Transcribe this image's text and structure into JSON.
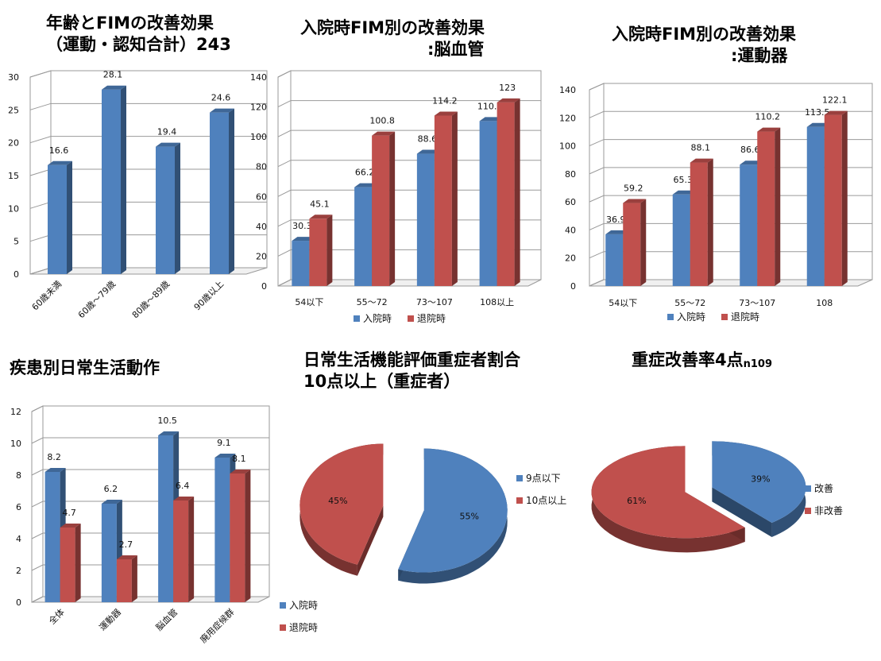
{
  "colors": {
    "blue": "#4f81bd",
    "red": "#c0504d"
  },
  "chart_data": [
    {
      "id": "c1",
      "type": "bar",
      "title_lines": [
        "年齢とFIMの改善効果",
        "（運動・認知合計）243"
      ],
      "categories": [
        "60歳未満",
        "60歳～79歳",
        "80歳～89歳",
        "90歳以上"
      ],
      "series": [
        {
          "values": [
            16.6,
            28.1,
            19.4,
            24.6
          ]
        }
      ],
      "data_labels": [
        "16.6",
        "28.1",
        "19.4",
        "24.6"
      ],
      "yticks": [
        "0",
        "5",
        "10",
        "15",
        "20",
        "25",
        "30"
      ],
      "ylim": [
        0,
        30
      ],
      "grid": true,
      "legend": "none"
    },
    {
      "id": "c2",
      "type": "bar",
      "title_lines": [
        "入院時FIM別の改善効果",
        ":脳血管"
      ],
      "categories": [
        "54以下",
        "55～72",
        "73～107",
        "108以上"
      ],
      "series": [
        {
          "name": "入院時",
          "values": [
            30.3,
            66.2,
            88.6,
            110.5
          ]
        },
        {
          "name": "退院時",
          "values": [
            45.1,
            100.8,
            114.2,
            123
          ]
        }
      ],
      "data_labels": [
        [
          "30.3",
          "66.2",
          "88.6",
          "110.5"
        ],
        [
          "45.1",
          "100.8",
          "114.2",
          "123"
        ]
      ],
      "yticks": [
        "0",
        "20",
        "40",
        "60",
        "80",
        "100",
        "120",
        "140"
      ],
      "ylim": [
        0,
        140
      ],
      "grid": true,
      "legend": "bottom"
    },
    {
      "id": "c3",
      "type": "bar",
      "title_lines": [
        "入院時FIM別の改善効果",
        ":運動器"
      ],
      "categories": [
        "54以下",
        "55～72",
        "73～107",
        "108"
      ],
      "series": [
        {
          "name": "入院時",
          "values": [
            36.9,
            65.3,
            86.6,
            113.5
          ]
        },
        {
          "name": "退院時",
          "values": [
            59.2,
            88.1,
            110.2,
            122.1
          ]
        }
      ],
      "data_labels": [
        [
          "36.9",
          "65.3",
          "86.6",
          "113.5"
        ],
        [
          "59.2",
          "88.1",
          "110.2",
          "122.1"
        ]
      ],
      "yticks": [
        "0",
        "20",
        "40",
        "60",
        "80",
        "100",
        "120",
        "140"
      ],
      "ylim": [
        0,
        140
      ],
      "grid": true,
      "legend": "bottom"
    },
    {
      "id": "c4",
      "type": "bar",
      "title_lines": [
        "疾患別日常生活動作"
      ],
      "categories": [
        "全体",
        "運動器",
        "脳血管",
        "廃用症候群"
      ],
      "series": [
        {
          "name": "入院時",
          "values": [
            8.2,
            6.2,
            10.5,
            9.1
          ]
        },
        {
          "name": "退院時",
          "values": [
            4.7,
            2.7,
            6.4,
            8.1
          ]
        }
      ],
      "data_labels": [
        [
          "8.2",
          "6.2",
          "10.5",
          "9.1"
        ],
        [
          "4.7",
          "2.7",
          "6.4",
          "8.1"
        ]
      ],
      "yticks": [
        "0",
        "2",
        "4",
        "6",
        "8",
        "10",
        "12"
      ],
      "ylim": [
        0,
        12
      ],
      "grid": true,
      "legend": "bottom-right"
    },
    {
      "id": "c5",
      "type": "pie",
      "title_lines": [
        "日常生活機能評価重症者割合",
        "10点以上（重症者）"
      ],
      "slices": [
        {
          "name": "9点以下",
          "value": 55,
          "label": "55%"
        },
        {
          "name": "10点以上",
          "value": 45,
          "label": "45%"
        }
      ],
      "legend": "right"
    },
    {
      "id": "c6",
      "type": "pie",
      "title_main": "重症改善率4点",
      "title_sub": "n109",
      "slices": [
        {
          "name": "改善",
          "value": 39,
          "label": "39%"
        },
        {
          "name": "非改善",
          "value": 61,
          "label": "61%"
        }
      ],
      "legend": "right"
    }
  ]
}
